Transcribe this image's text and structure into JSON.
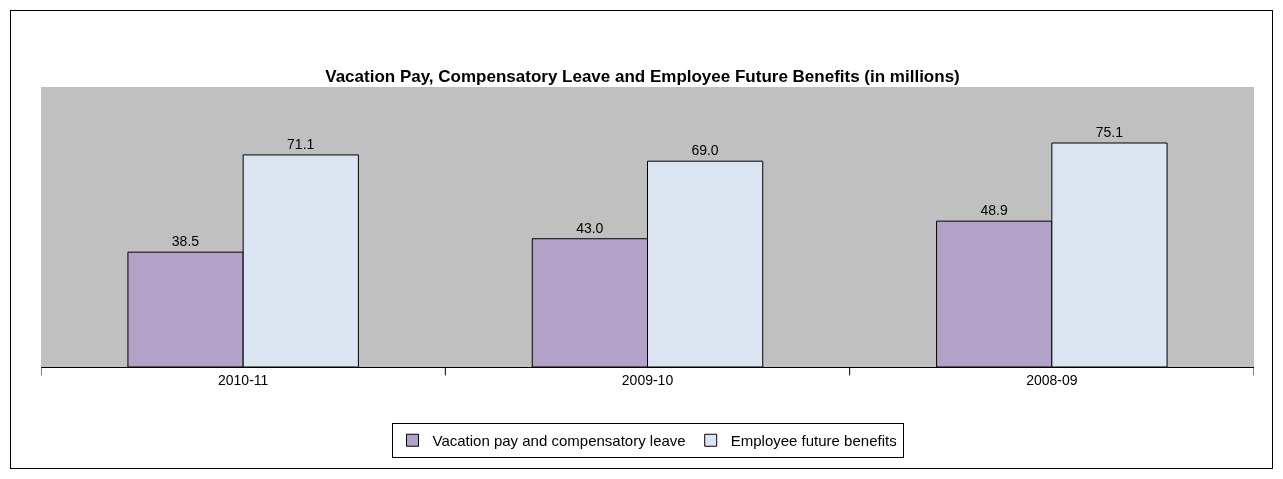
{
  "chart_data": {
    "type": "bar",
    "title": "Vacation Pay, Compensatory Leave and Employee Future Benefits (in millions)",
    "categories": [
      "2010-11",
      "2009-10",
      "2008-09"
    ],
    "series": [
      {
        "name": "Vacation pay and compensatory leave",
        "color": "#b3a2c7",
        "values": [
          38.5,
          43.0,
          48.9
        ],
        "value_labels": [
          "38.5",
          "43.0",
          "48.9"
        ]
      },
      {
        "name": "Employee future benefits",
        "color": "#dbe5f1",
        "values": [
          71.1,
          69.0,
          75.1
        ],
        "value_labels": [
          "71.1",
          "69.0",
          "75.1"
        ]
      }
    ],
    "grid": false,
    "legend": "bottom"
  }
}
